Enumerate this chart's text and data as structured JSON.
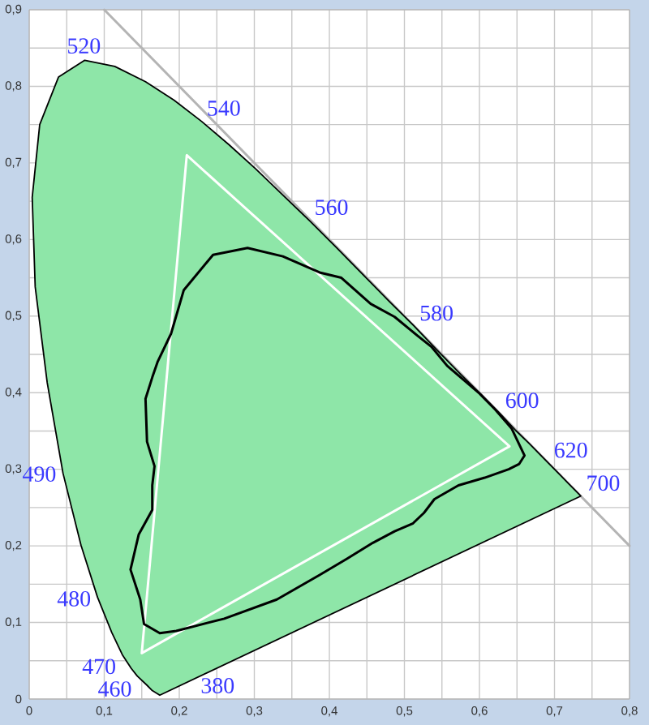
{
  "chart_data": {
    "type": "line",
    "xlim": [
      0,
      0.8
    ],
    "ylim": [
      0,
      0.9
    ],
    "xticks": [
      0,
      {
        "value": 0.05,
        "label": null
      },
      {
        "value": 0.1,
        "label": "0,1"
      },
      {
        "value": 0.15,
        "label": null
      },
      {
        "value": 0.2,
        "label": "0,2"
      },
      {
        "value": 0.25,
        "label": null
      },
      {
        "value": 0.3,
        "label": "0,3"
      },
      {
        "value": 0.35,
        "label": null
      },
      {
        "value": 0.4,
        "label": "0,4"
      },
      {
        "value": 0.45,
        "label": null
      },
      {
        "value": 0.5,
        "label": "0,5"
      },
      {
        "value": 0.55,
        "label": null
      },
      {
        "value": 0.6,
        "label": "0,6"
      },
      {
        "value": 0.65,
        "label": null
      },
      {
        "value": 0.7,
        "label": "0,7"
      },
      {
        "value": 0.75,
        "label": null
      },
      {
        "value": 0.8,
        "label": "0,8"
      }
    ],
    "yticks": [
      0,
      {
        "value": 0.05,
        "label": null
      },
      {
        "value": 0.1,
        "label": "0,1"
      },
      {
        "value": 0.15,
        "label": null
      },
      {
        "value": 0.2,
        "label": "0,2"
      },
      {
        "value": 0.25,
        "label": null
      },
      {
        "value": 0.3,
        "label": "0,3"
      },
      {
        "value": 0.35,
        "label": null
      },
      {
        "value": 0.4,
        "label": "0,4"
      },
      {
        "value": 0.45,
        "label": null
      },
      {
        "value": 0.5,
        "label": "0,5"
      },
      {
        "value": 0.55,
        "label": null
      },
      {
        "value": 0.6,
        "label": "0,6"
      },
      {
        "value": 0.65,
        "label": null
      },
      {
        "value": 0.7,
        "label": "0,7"
      },
      {
        "value": 0.75,
        "label": null
      },
      {
        "value": 0.8,
        "label": "0,8"
      },
      {
        "value": 0.85,
        "label": null
      },
      {
        "value": 0.9,
        "label": "0,9"
      }
    ],
    "grid": true,
    "series": [
      {
        "type": "line",
        "color": "#b4b4b4",
        "x": [
          0.1,
          0.8
        ],
        "values": [
          0.9,
          0.2
        ]
      },
      {
        "type": "area",
        "color": "#8ee6a8",
        "x": [
          0.174,
          0.164,
          0.157,
          0.144,
          0.136,
          0.124,
          0.11,
          0.091,
          0.069,
          0.045,
          0.024,
          0.008,
          0.004,
          0.014,
          0.039,
          0.074,
          0.114,
          0.155,
          0.193,
          0.23,
          0.266,
          0.302,
          0.337,
          0.373,
          0.409,
          0.444,
          0.479,
          0.513,
          0.545,
          0.575,
          0.603,
          0.627,
          0.648,
          0.666,
          0.692,
          0.708,
          0.719,
          0.726,
          0.735,
          0.174
        ],
        "values": [
          0.005,
          0.011,
          0.018,
          0.03,
          0.04,
          0.058,
          0.087,
          0.133,
          0.201,
          0.295,
          0.413,
          0.538,
          0.655,
          0.75,
          0.812,
          0.834,
          0.826,
          0.806,
          0.782,
          0.754,
          0.724,
          0.692,
          0.659,
          0.625,
          0.59,
          0.555,
          0.52,
          0.487,
          0.454,
          0.424,
          0.397,
          0.373,
          0.351,
          0.334,
          0.308,
          0.292,
          0.281,
          0.274,
          0.265,
          0.005
        ]
      },
      {
        "type": "line",
        "color": "#ffffff",
        "x": [
          0.64,
          0.21,
          0.15,
          0.64
        ],
        "values": [
          0.33,
          0.71,
          0.06,
          0.33
        ]
      },
      {
        "type": "line",
        "color": "#000000",
        "x": [
          0.174,
          0.153,
          0.148,
          0.135,
          0.146,
          0.164,
          0.164,
          0.167,
          0.157,
          0.155,
          0.164,
          0.171,
          0.189,
          0.206,
          0.245,
          0.291,
          0.338,
          0.387,
          0.416,
          0.455,
          0.487,
          0.518,
          0.536,
          0.557,
          0.575,
          0.6,
          0.621,
          0.643,
          0.66,
          0.653,
          0.639,
          0.607,
          0.572,
          0.54,
          0.526,
          0.511,
          0.487,
          0.458,
          0.423,
          0.387,
          0.33,
          0.26,
          0.196,
          0.174
        ],
        "values": [
          0.086,
          0.098,
          0.13,
          0.169,
          0.215,
          0.247,
          0.279,
          0.304,
          0.336,
          0.392,
          0.42,
          0.44,
          0.477,
          0.534,
          0.58,
          0.589,
          0.578,
          0.557,
          0.55,
          0.516,
          0.499,
          0.474,
          0.46,
          0.435,
          0.42,
          0.399,
          0.378,
          0.353,
          0.318,
          0.307,
          0.3,
          0.289,
          0.279,
          0.261,
          0.243,
          0.229,
          0.219,
          0.204,
          0.183,
          0.162,
          0.13,
          0.105,
          0.089,
          0.086
        ]
      }
    ],
    "annotations": [
      {
        "text": "380",
        "x": 0.174,
        "y": 0.005
      },
      {
        "text": "460",
        "x": 0.144,
        "y": 0.03
      },
      {
        "text": "470",
        "x": 0.124,
        "y": 0.058
      },
      {
        "text": "480",
        "x": 0.091,
        "y": 0.133
      },
      {
        "text": "490",
        "x": 0.045,
        "y": 0.295
      },
      {
        "text": "520",
        "x": 0.074,
        "y": 0.834
      },
      {
        "text": "540",
        "x": 0.23,
        "y": 0.754
      },
      {
        "text": "560",
        "x": 0.373,
        "y": 0.625
      },
      {
        "text": "580",
        "x": 0.513,
        "y": 0.487
      },
      {
        "text": "600",
        "x": 0.627,
        "y": 0.373
      },
      {
        "text": "620",
        "x": 0.692,
        "y": 0.308
      },
      {
        "text": "700",
        "x": 0.735,
        "y": 0.265
      }
    ]
  }
}
